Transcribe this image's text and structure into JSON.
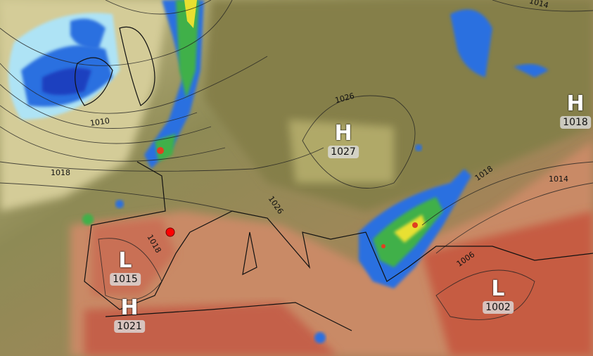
{
  "map": {
    "pressure_centers": [
      {
        "type": "H",
        "value": "1018"
      },
      {
        "type": "H",
        "value": "1027"
      },
      {
        "type": "L",
        "value": "1015"
      },
      {
        "type": "H",
        "value": "1021"
      },
      {
        "type": "L",
        "value": "1002"
      }
    ],
    "isobar_labels": [
      "1010",
      "1018",
      "1018",
      "1026",
      "1026",
      "1018",
      "1014",
      "1006",
      "1014"
    ],
    "marker_color": "#ff0000",
    "colors": {
      "land": "#8f8650",
      "warm": "#d98a5e",
      "hot": "#c9604a",
      "sea": "#c8b890",
      "rain_light": "#aee3f5",
      "rain": "#2a6fe0",
      "rain_heavy": "#1f3fbf",
      "rain_mod": "#3fb04a",
      "rain_strong": "#e8e030",
      "rain_extreme": "#e04020"
    }
  }
}
